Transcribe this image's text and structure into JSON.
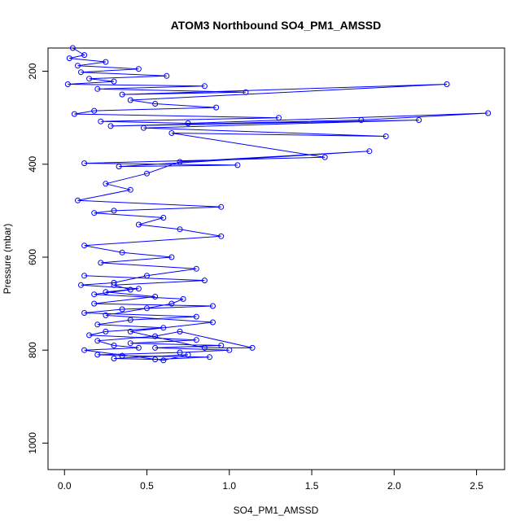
{
  "chart_data": {
    "type": "line",
    "title": "ATOM3 Northbound SO4_PM1_AMSSD",
    "xlabel": "SO4_PM1_AMSSD",
    "ylabel": "Pressure (mbar)",
    "xlim": [
      -0.1,
      2.67
    ],
    "ylim": [
      1057,
      150
    ],
    "y_inverted": true,
    "grid": false,
    "line_color": "#0000ff",
    "marker": "open-circle",
    "xticks": [
      {
        "value": 0.0,
        "label": "0.0"
      },
      {
        "value": 0.5,
        "label": "0.5"
      },
      {
        "value": 1.0,
        "label": "1.0"
      },
      {
        "value": 1.5,
        "label": "1.5"
      },
      {
        "value": 2.0,
        "label": "2.0"
      },
      {
        "value": 2.5,
        "label": "2.5"
      }
    ],
    "yticks": [
      {
        "value": 200,
        "label": "200"
      },
      {
        "value": 400,
        "label": "400"
      },
      {
        "value": 600,
        "label": "600"
      },
      {
        "value": 800,
        "label": "800"
      },
      {
        "value": 1000,
        "label": "1000"
      }
    ],
    "series": [
      {
        "x": [
          0.05,
          0.12,
          0.03,
          0.25,
          0.08,
          0.45,
          0.1,
          0.62,
          0.15,
          0.3,
          0.02,
          0.85,
          0.2,
          1.1,
          0.35,
          2.32,
          0.4,
          0.55,
          0.92,
          0.18,
          0.06,
          1.3,
          0.22,
          0.75,
          2.57,
          1.8,
          0.28,
          2.15,
          0.48,
          1.95,
          0.65,
          1.58,
          0.12,
          1.05,
          0.33,
          1.85,
          0.7,
          0.5,
          0.25,
          0.4,
          0.08,
          0.95,
          0.3,
          0.18,
          0.6,
          0.45,
          0.7,
          0.95,
          0.12,
          0.35,
          0.65,
          0.22,
          0.8,
          0.5,
          0.3,
          0.1,
          0.45,
          0.25,
          0.55,
          0.18,
          0.9,
          0.35,
          0.12,
          0.8,
          0.4,
          0.2,
          0.6,
          0.25,
          0.15,
          0.8,
          0.4,
          0.95,
          0.55,
          1.0,
          0.7,
          0.2,
          0.35,
          0.88,
          0.55,
          0.3,
          0.75,
          0.6,
          0.12,
          0.45,
          0.3,
          0.2,
          0.55,
          0.7,
          1.14,
          0.85,
          0.4,
          0.9,
          0.25,
          0.5,
          0.65,
          0.72,
          0.18,
          0.4,
          0.3,
          0.85,
          0.12
        ],
        "y": [
          150,
          165,
          172,
          180,
          188,
          195,
          202,
          210,
          216,
          222,
          228,
          232,
          238,
          245,
          250,
          228,
          262,
          270,
          278,
          285,
          292,
          300,
          308,
          312,
          290,
          305,
          318,
          305,
          322,
          340,
          333,
          385,
          398,
          402,
          405,
          372,
          395,
          420,
          442,
          455,
          478,
          492,
          500,
          505,
          515,
          530,
          540,
          555,
          575,
          590,
          600,
          612,
          625,
          640,
          655,
          660,
          668,
          675,
          685,
          700,
          705,
          712,
          720,
          728,
          735,
          745,
          752,
          760,
          768,
          778,
          785,
          790,
          795,
          800,
          805,
          810,
          812,
          815,
          820,
          818,
          810,
          822,
          800,
          795,
          790,
          780,
          770,
          760,
          795,
          795,
          760,
          740,
          725,
          710,
          700,
          690,
          680,
          670,
          660,
          650,
          640
        ]
      }
    ]
  }
}
